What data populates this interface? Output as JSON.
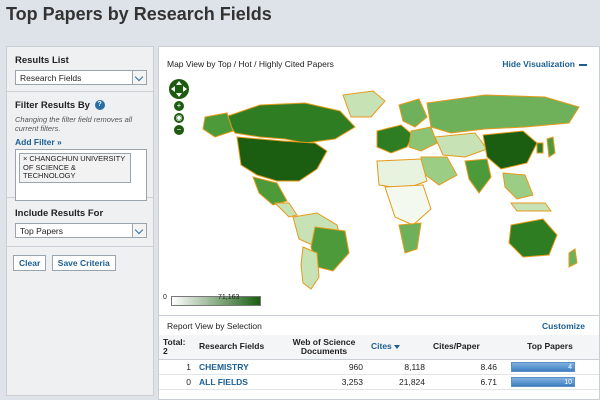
{
  "page": {
    "title": "Top Papers by Research Fields"
  },
  "sidebar": {
    "results_list": {
      "label": "Results List",
      "selected": "Research Fields"
    },
    "filter": {
      "label": "Filter Results By",
      "hint": "Changing the filter field removes all current filters.",
      "add_filter": "Add Filter »",
      "chip_remove": "×",
      "chip": "CHANGCHUN UNIVERSITY OF SCIENCE & TECHNOLOGY"
    },
    "include": {
      "label": "Include Results For",
      "selected": "Top Papers"
    },
    "buttons": {
      "clear": "Clear",
      "save": "Save Criteria"
    }
  },
  "map": {
    "header": "Map View by Top / Hot / Highly Cited Papers",
    "hide": "Hide Visualization",
    "legend_min": "0",
    "legend_max": "71,163",
    "colors": {
      "dark": "#1b5e12",
      "mid": "#4d9a3a",
      "light": "#c7e3b5",
      "border": "#e59a1a"
    }
  },
  "report": {
    "header": "Report View by Selection",
    "customize": "Customize",
    "columns": {
      "total": "Total:",
      "total_count": "2",
      "field": "Research Fields",
      "wos": "Web of Science Documents",
      "cites": "Cites",
      "cites_paper": "Cites/Paper",
      "top": "Top Papers"
    },
    "rows": [
      {
        "index": "1",
        "field": "CHEMISTRY",
        "wos": "960",
        "cites": "8,118",
        "cites_paper": "8.46",
        "top": "4"
      },
      {
        "index": "0",
        "field": "ALL FIELDS",
        "wos": "3,253",
        "cites": "21,824",
        "cites_paper": "6.71",
        "top": "10"
      }
    ]
  }
}
